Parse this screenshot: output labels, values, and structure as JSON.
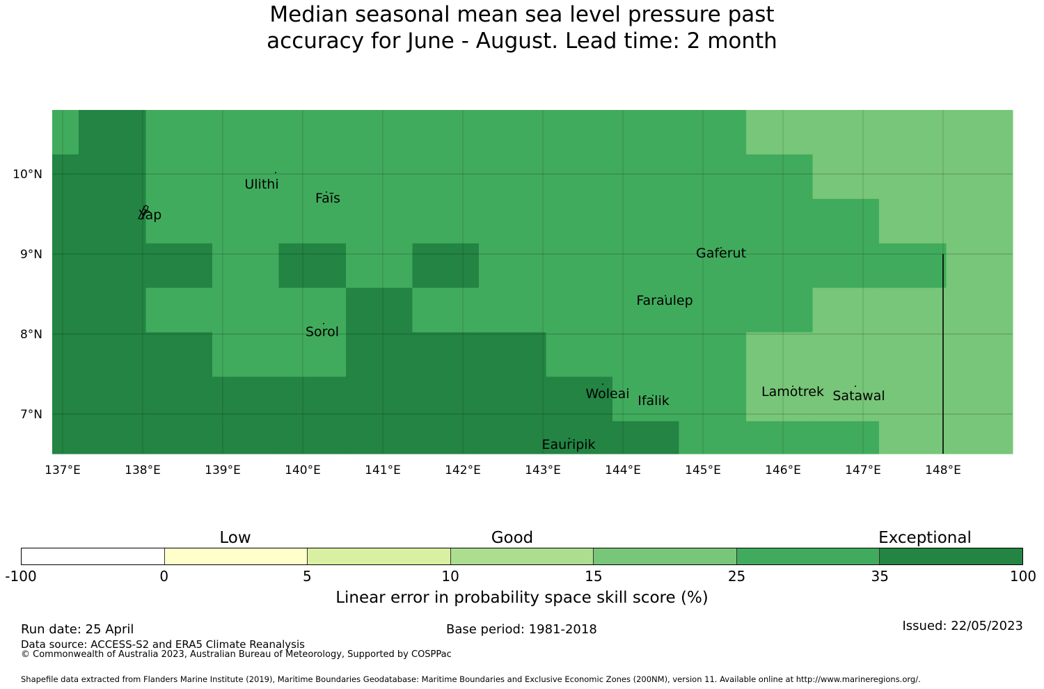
{
  "title": {
    "line1": "Median seasonal mean sea level pressure past",
    "line2": "accuracy for June - August. Lead time: 2 month"
  },
  "map": {
    "lon_range": [
      137,
      149
    ],
    "lat_range": [
      6.5,
      10.8
    ],
    "lon_ticks": [
      {
        "value": 137,
        "label": "137°E"
      },
      {
        "value": 138,
        "label": "138°E"
      },
      {
        "value": 139,
        "label": "139°E"
      },
      {
        "value": 140,
        "label": "140°E"
      },
      {
        "value": 141,
        "label": "141°E"
      },
      {
        "value": 142,
        "label": "142°E"
      },
      {
        "value": 143,
        "label": "143°E"
      },
      {
        "value": 144,
        "label": "144°E"
      },
      {
        "value": 145,
        "label": "145°E"
      },
      {
        "value": 146,
        "label": "146°E"
      },
      {
        "value": 147,
        "label": "147°E"
      },
      {
        "value": 148,
        "label": "148°E"
      }
    ],
    "lat_ticks": [
      {
        "value": 10,
        "label": "10°N"
      },
      {
        "value": 9,
        "label": "9°N"
      },
      {
        "value": 8,
        "label": "8°N"
      },
      {
        "value": 7,
        "label": "7°N"
      }
    ],
    "category_colors": {
      "c15_25": "#78c679",
      "c25_35": "#41ab5d",
      "c35_100": "#238443"
    },
    "grid_notes": "cells are 0.833° lon by 0.556° lat, rows listed north to south, values are skill-score categories",
    "places": [
      {
        "name": "Ulithi",
        "lon": 139.8,
        "lat": 10.0
      },
      {
        "name": "Fais",
        "lon": 140.45,
        "lat": 9.76
      },
      {
        "name": "Yap",
        "lon": 138.13,
        "lat": 9.52
      },
      {
        "name": "Gaferut",
        "lon": 145.37,
        "lat": 9.23
      },
      {
        "name": "Faraulep",
        "lon": 144.53,
        "lat": 8.6
      },
      {
        "name": "Sorol",
        "lon": 140.4,
        "lat": 8.14
      },
      {
        "name": "Woleai",
        "lon": 143.9,
        "lat": 7.38
      },
      {
        "name": "Ifalik",
        "lon": 144.45,
        "lat": 7.25
      },
      {
        "name": "Lamotrek",
        "lon": 146.28,
        "lat": 7.48
      },
      {
        "name": "Satawal",
        "lon": 147.03,
        "lat": 7.37
      },
      {
        "name": "Eauripik",
        "lon": 143.04,
        "lat": 6.69
      }
    ],
    "place_labels": [
      "Ulithi",
      "Faīs",
      "Yap",
      "Gaferut",
      "Faraulep",
      "Sorol",
      "Woleai",
      "Ifalik",
      "Lamotrek",
      "Satawal",
      "Eauripik"
    ]
  },
  "chart_data": {
    "type": "heatmap",
    "title": "Median seasonal mean sea level pressure past accuracy for June - August. Lead time: 2 month",
    "xlabel": "",
    "ylabel": "",
    "x_range": [
      137,
      149
    ],
    "y_range": [
      6.5,
      10.8
    ],
    "cell_lon_width": 0.8333,
    "cell_lat_height": 0.5556,
    "grid_top_lat": 10.8,
    "grid_left_lon": 137,
    "column_lon_edges": [
      136.5,
      137.33,
      138.17,
      139.0,
      139.83,
      140.67,
      141.5,
      142.33,
      143.17,
      144.0,
      144.83,
      145.67,
      146.5,
      147.33,
      148.17,
      149.0
    ],
    "categories_legend": [
      "15-25",
      "25-35",
      "35-100"
    ],
    "rows": [
      [
        "25-35",
        "35-100",
        "25-35",
        "25-35",
        "25-35",
        "25-35",
        "25-35",
        "25-35",
        "25-35",
        "25-35",
        "25-35",
        "15-25",
        "15-25",
        "15-25",
        "15-25"
      ],
      [
        "35-100",
        "35-100",
        "25-35",
        "25-35",
        "25-35",
        "25-35",
        "25-35",
        "25-35",
        "25-35",
        "25-35",
        "25-35",
        "25-35",
        "15-25",
        "15-25",
        "15-25"
      ],
      [
        "35-100",
        "35-100",
        "25-35",
        "25-35",
        "25-35",
        "25-35",
        "25-35",
        "25-35",
        "25-35",
        "25-35",
        "25-35",
        "25-35",
        "25-35",
        "15-25",
        "15-25"
      ],
      [
        "35-100",
        "35-100",
        "35-100",
        "25-35",
        "35-100",
        "25-35",
        "35-100",
        "25-35",
        "25-35",
        "25-35",
        "25-35",
        "25-35",
        "25-35",
        "25-35",
        "15-25"
      ],
      [
        "35-100",
        "35-100",
        "25-35",
        "25-35",
        "25-35",
        "35-100",
        "25-35",
        "25-35",
        "25-35",
        "25-35",
        "25-35",
        "25-35",
        "15-25",
        "15-25",
        "15-25"
      ],
      [
        "35-100",
        "35-100",
        "35-100",
        "25-35",
        "25-35",
        "35-100",
        "35-100",
        "35-100",
        "25-35",
        "25-35",
        "25-35",
        "15-25",
        "15-25",
        "15-25",
        "15-25"
      ],
      [
        "35-100",
        "35-100",
        "35-100",
        "35-100",
        "35-100",
        "35-100",
        "35-100",
        "35-100",
        "35-100",
        "25-35",
        "25-35",
        "15-25",
        "15-25",
        "15-25",
        "15-25"
      ],
      [
        "35-100",
        "35-100",
        "35-100",
        "35-100",
        "35-100",
        "35-100",
        "35-100",
        "35-100",
        "35-100",
        "35-100",
        "25-35",
        "25-35",
        "25-35",
        "15-25",
        "15-25"
      ]
    ],
    "colorbar": {
      "ticks": [
        "-100",
        "0",
        "5",
        "10",
        "15",
        "25",
        "35",
        "100"
      ],
      "colors": [
        "#ffffff",
        "#ffffcc",
        "#d9f0a3",
        "#addd8e",
        "#78c679",
        "#41ab5d",
        "#238443"
      ],
      "category_labels": [
        "Low",
        "Good",
        "Exceptional"
      ],
      "label": "Linear error in probability space skill score (%)"
    }
  },
  "footer": {
    "run_date": "Run date: 25 April",
    "base_period": "Base period: 1981-2018",
    "issued": "Issued: 22/05/2023",
    "data_source": "Data source: ACCESS-S2 and ERA5 Climate Reanalysis",
    "copyright": "© Commonwealth of Australia 2023, Australian Bureau of Meteorology, Supported by COSPPac",
    "shapefile": "Shapefile data extracted from Flanders Marine Institute (2019), Maritime Boundaries Geodatabase: Maritime Boundaries and Exclusive Economic Zones (200NM), version 11. Available online at http://www.marineregions.org/."
  }
}
